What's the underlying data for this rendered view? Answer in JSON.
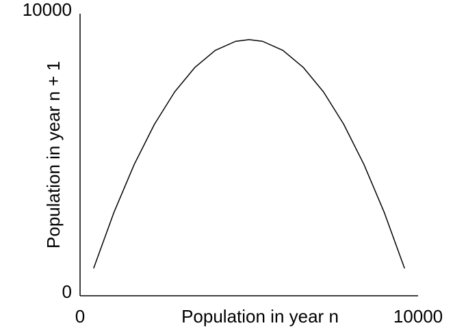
{
  "chart_data": {
    "type": "line",
    "x_label": "Population in year n",
    "y_label": "Population in year n + 1",
    "x": [
      400,
      1000,
      1600,
      2200,
      2800,
      3400,
      4000,
      4600,
      5000,
      5400,
      6000,
      6600,
      7200,
      7800,
      8400,
      9000,
      9600
    ],
    "series": [
      {
        "color": "#000000",
        "values": [
          970,
          2950,
          4650,
          6080,
          7230,
          8100,
          8700,
          9020,
          9080,
          9020,
          8700,
          8100,
          7230,
          6080,
          4650,
          2950,
          970
        ]
      }
    ],
    "xlim": [
      0,
      10000
    ],
    "ylim": [
      0,
      10000
    ],
    "xticks": [
      0,
      10000
    ],
    "yticks": [
      0,
      10000
    ]
  }
}
